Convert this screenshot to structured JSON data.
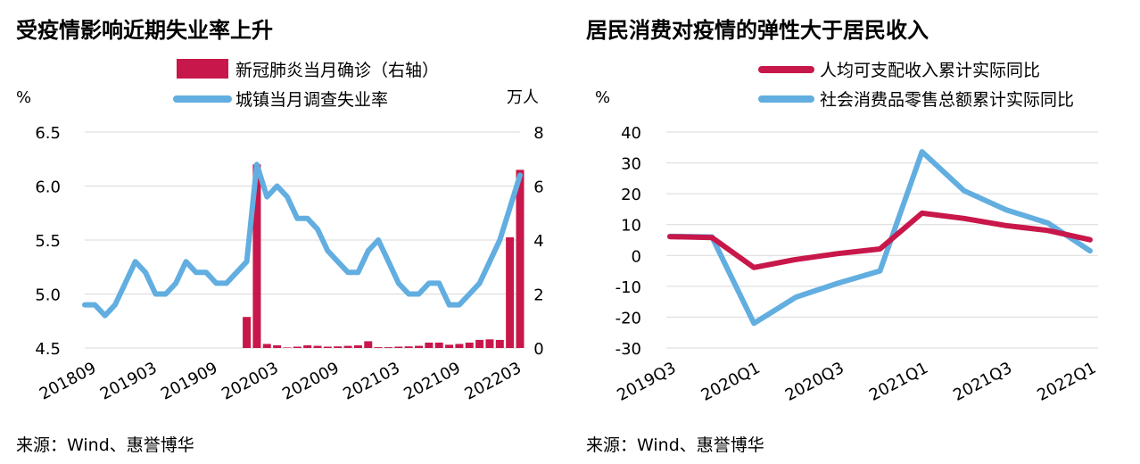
{
  "chart_data": [
    {
      "type": "bar+line",
      "title": "受疫情影响近期失业率上升",
      "source": "来源：Wind、惠誉博华",
      "left_unit": "%",
      "right_unit": "万人",
      "legend_position": "top",
      "grid": true,
      "y_left": {
        "min": 4.5,
        "max": 6.5,
        "ticks": [
          "4.5",
          "5.0",
          "5.5",
          "6.0",
          "6.5"
        ]
      },
      "y_right": {
        "min": 0,
        "max": 8,
        "ticks": [
          "0",
          "2",
          "4",
          "6",
          "8"
        ]
      },
      "x_tick_labels": [
        "201809",
        "201903",
        "201909",
        "202003",
        "202009",
        "202103",
        "202109",
        "202203"
      ],
      "x": [
        "201809",
        "201810",
        "201811",
        "201812",
        "201901",
        "201902",
        "201903",
        "201904",
        "201905",
        "201906",
        "201907",
        "201908",
        "201909",
        "201910",
        "201911",
        "201912",
        "202001",
        "202002",
        "202003",
        "202004",
        "202005",
        "202006",
        "202007",
        "202008",
        "202009",
        "202010",
        "202011",
        "202012",
        "202101",
        "202102",
        "202103",
        "202104",
        "202105",
        "202106",
        "202107",
        "202108",
        "202109",
        "202110",
        "202111",
        "202112",
        "202201",
        "202202",
        "202203",
        "202204"
      ],
      "series": [
        {
          "name": "新冠肺炎当月确诊（右轴）",
          "type": "bar",
          "axis": "right",
          "color": "#c8174a",
          "values": [
            0,
            0,
            0,
            0,
            0,
            0,
            0,
            0,
            0,
            0,
            0,
            0,
            0,
            0,
            0,
            0,
            1.15,
            6.8,
            0.15,
            0.1,
            0.02,
            0.05,
            0.1,
            0.08,
            0.05,
            0.06,
            0.08,
            0.1,
            0.25,
            0.03,
            0.03,
            0.05,
            0.06,
            0.08,
            0.2,
            0.2,
            0.12,
            0.15,
            0.2,
            0.3,
            0.32,
            0.3,
            4.1,
            6.6
          ]
        },
        {
          "name": "城镇当月调查失业率",
          "type": "line",
          "axis": "left",
          "color": "#62aee0",
          "values": [
            4.9,
            4.9,
            4.8,
            4.9,
            5.1,
            5.3,
            5.2,
            5.0,
            5.0,
            5.1,
            5.3,
            5.2,
            5.2,
            5.1,
            5.1,
            5.2,
            5.3,
            6.2,
            5.9,
            6.0,
            5.9,
            5.7,
            5.7,
            5.6,
            5.4,
            5.3,
            5.2,
            5.2,
            5.4,
            5.5,
            5.3,
            5.1,
            5.0,
            5.0,
            5.1,
            5.1,
            4.9,
            4.9,
            5.0,
            5.1,
            5.3,
            5.5,
            5.8,
            6.1
          ]
        }
      ]
    },
    {
      "type": "line",
      "title": "居民消费对疫情的弹性大于居民收入",
      "source": "来源：Wind、惠誉博华",
      "left_unit": "%",
      "legend_position": "top",
      "grid": true,
      "y_left": {
        "min": -30,
        "max": 40,
        "ticks": [
          "40",
          "30",
          "20",
          "10",
          "0",
          "-10",
          "-20",
          "-30"
        ]
      },
      "x_tick_labels": [
        "2019Q3",
        "2020Q1",
        "2020Q3",
        "2021Q1",
        "2021Q3",
        "2022Q1"
      ],
      "x": [
        "2019Q3",
        "2019Q4",
        "2020Q1",
        "2020Q2",
        "2020Q3",
        "2020Q4",
        "2021Q1",
        "2021Q2",
        "2021Q3",
        "2021Q4",
        "2022Q1"
      ],
      "series": [
        {
          "name": "人均可支配收入累计实际同比",
          "color": "#c8174a",
          "values": [
            6.1,
            5.8,
            -3.9,
            -1.3,
            0.6,
            2.1,
            13.7,
            12.0,
            9.7,
            8.1,
            5.1
          ]
        },
        {
          "name": "社会消费品零售总额累计实际同比",
          "color": "#62aee0",
          "values": [
            6.2,
            6.0,
            -22.0,
            -13.5,
            -9.0,
            -5.0,
            33.6,
            21.0,
            14.8,
            10.5,
            1.5
          ]
        }
      ]
    }
  ]
}
